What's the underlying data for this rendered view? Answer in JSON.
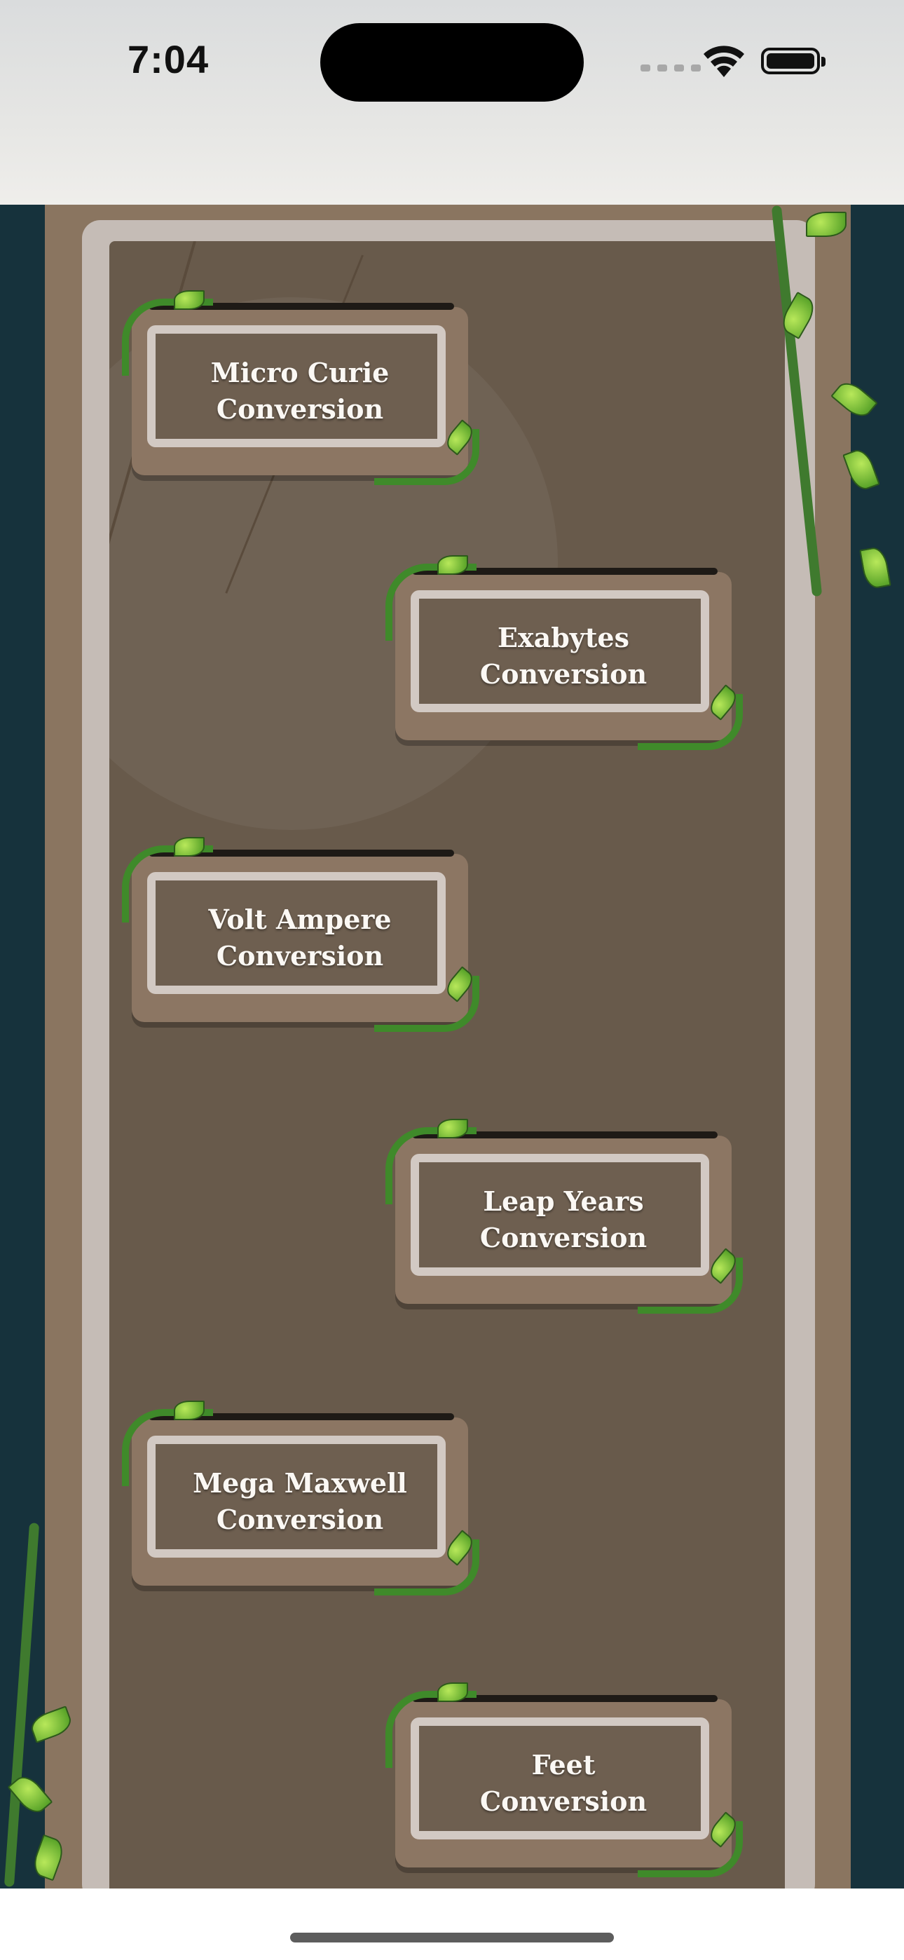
{
  "status_bar": {
    "time": "7:04"
  },
  "conversion_buttons": [
    {
      "label": "Micro Curie\nConversion"
    },
    {
      "label": "Exabytes\nConversion"
    },
    {
      "label": "Volt Ampere\nConversion"
    },
    {
      "label": "Leap Years\nConversion"
    },
    {
      "label": "Mega Maxwell\nConversion"
    },
    {
      "label": "Feet\nConversion"
    }
  ],
  "colors": {
    "background": "#16323c",
    "stone_frame": "#8a7560",
    "stone_panel": "#685a4b",
    "button_rim": "#d2c9c3",
    "vine": "#3f8a2a"
  }
}
